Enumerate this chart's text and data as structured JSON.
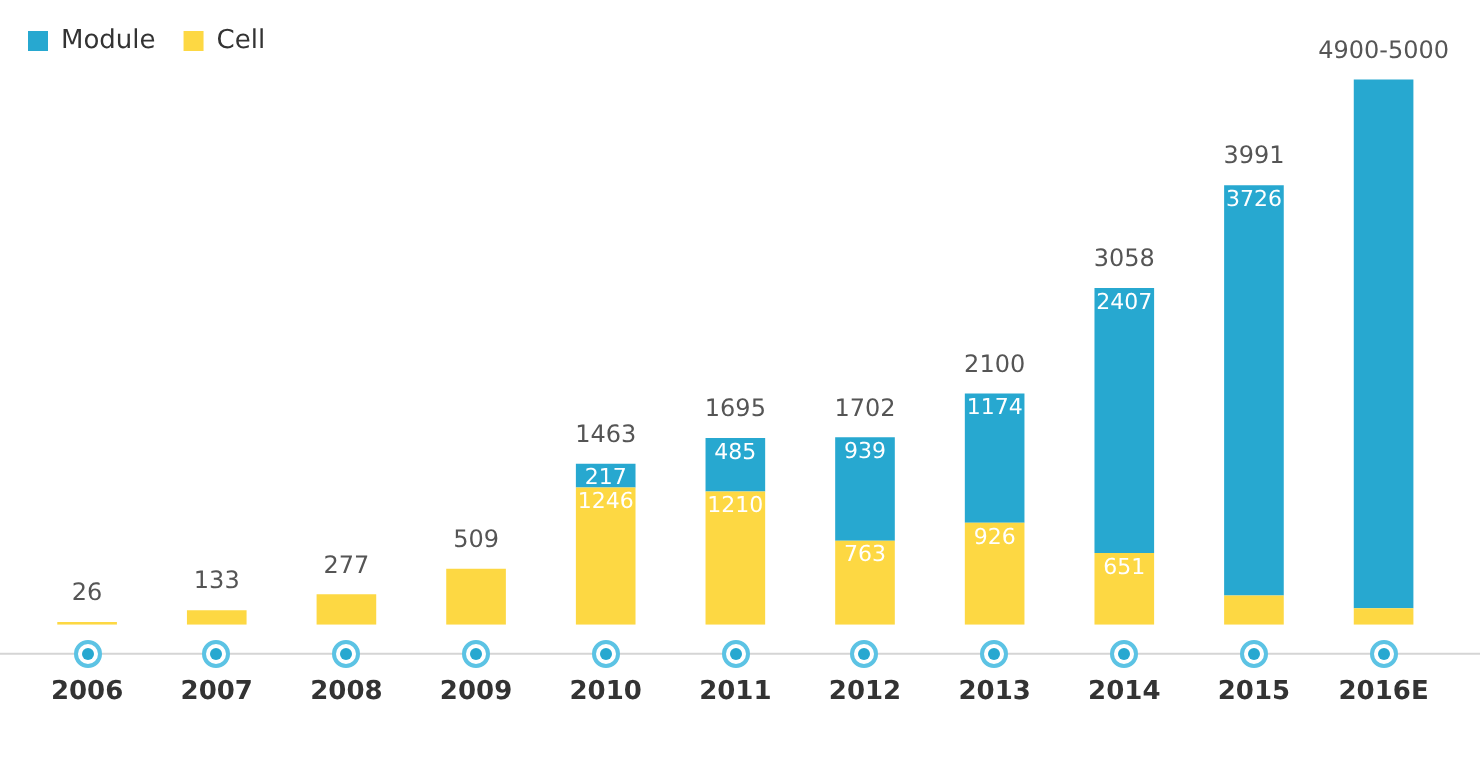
{
  "chart_data": {
    "type": "bar",
    "stacked": true,
    "legend": "top left",
    "grid": false,
    "tick_labels": "x",
    "categories": [
      "2006",
      "2007",
      "2008",
      "2009",
      "2010",
      "2011",
      "2012",
      "2013",
      "2014",
      "2015",
      "2016E"
    ],
    "series": [
      {
        "name": "Cell",
        "color": "#fdd843",
        "values": [
          26,
          133,
          277,
          509,
          1246,
          1210,
          763,
          926,
          651,
          265,
          150
        ],
        "value_labels": [
          null,
          null,
          null,
          null,
          "1246",
          "1210",
          "763",
          "926",
          "651",
          null,
          null
        ]
      },
      {
        "name": "Module",
        "color": "#27a8d0",
        "values": [
          0,
          0,
          0,
          0,
          217,
          485,
          939,
          1174,
          2407,
          3726,
          4800
        ],
        "value_labels": [
          null,
          null,
          null,
          null,
          "217",
          "485",
          "939",
          "1174",
          "2407",
          "3726",
          null
        ]
      }
    ],
    "totals": [
      "26",
      "133",
      "277",
      "509",
      "1463",
      "1695",
      "1702",
      "2100",
      "3058",
      "3991",
      "4900-5000"
    ]
  }
}
